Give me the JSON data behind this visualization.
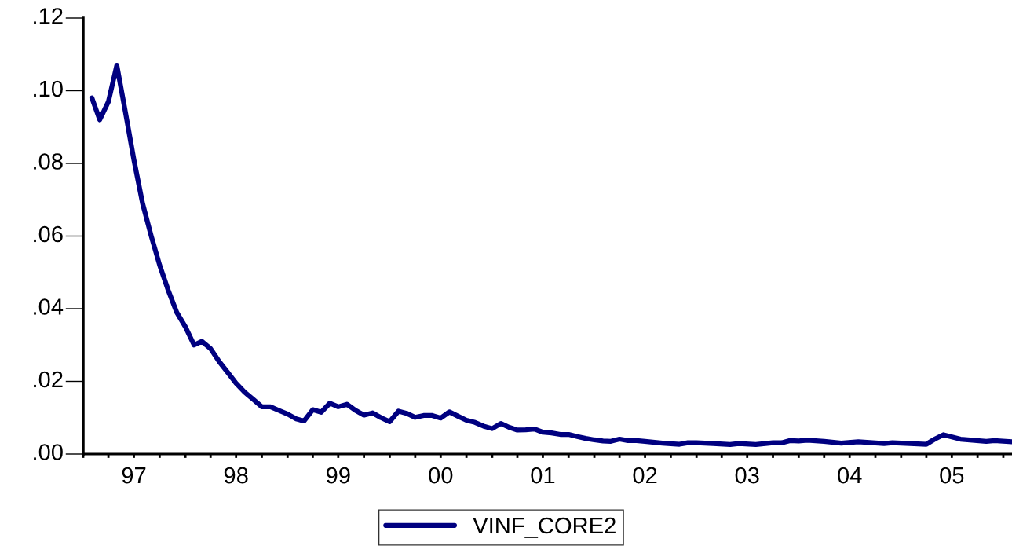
{
  "chart_data": {
    "type": "line",
    "x": [
      "1997-02",
      "1997-03",
      "1997-04",
      "1997-05",
      "1997-06",
      "1997-07",
      "1997-08",
      "1997-09",
      "1997-10",
      "1997-11",
      "1997-12",
      "1998-01",
      "1998-02",
      "1998-03",
      "1998-04",
      "1998-05",
      "1998-06",
      "1998-07",
      "1998-08",
      "1998-09",
      "1998-10",
      "1998-11",
      "1998-12",
      "1999-01",
      "1999-02",
      "1999-03",
      "1999-04",
      "1999-05",
      "1999-06",
      "1999-07",
      "1999-08",
      "1999-09",
      "1999-10",
      "1999-11",
      "1999-12",
      "2000-01",
      "2000-02",
      "2000-03",
      "2000-04",
      "2000-05",
      "2000-06",
      "2000-07",
      "2000-08",
      "2000-09",
      "2000-10",
      "2000-11",
      "2000-12",
      "2001-01",
      "2001-02",
      "2001-03",
      "2001-04",
      "2001-05",
      "2001-06",
      "2001-07",
      "2001-08",
      "2001-09",
      "2001-10",
      "2001-11",
      "2001-12",
      "2002-01",
      "2002-02",
      "2002-03",
      "2002-04",
      "2002-05",
      "2002-06",
      "2002-07",
      "2002-09",
      "2002-11",
      "2002-12",
      "2003-01",
      "2003-03",
      "2003-05",
      "2003-06",
      "2003-08",
      "2003-10",
      "2003-11",
      "2003-12",
      "2004-01",
      "2004-02",
      "2004-04",
      "2004-06",
      "2004-08",
      "2004-11",
      "2004-12",
      "2005-02",
      "2005-04",
      "2005-05",
      "2005-06",
      "2005-08",
      "2005-11",
      "2005-12",
      "2006-02"
    ],
    "series": [
      {
        "name": "VINF_CORE2",
        "color": "#000080",
        "values": [
          0.098,
          0.092,
          0.097,
          0.107,
          0.094,
          0.081,
          0.069,
          0.06,
          0.052,
          0.045,
          0.039,
          0.035,
          0.03,
          0.031,
          0.029,
          0.0255,
          0.0225,
          0.0195,
          0.017,
          0.015,
          0.013,
          0.013,
          0.012,
          0.011,
          0.0097,
          0.0091,
          0.0122,
          0.0115,
          0.014,
          0.013,
          0.0137,
          0.012,
          0.0107,
          0.0113,
          0.01,
          0.0089,
          0.0118,
          0.0112,
          0.0101,
          0.0106,
          0.0106,
          0.0099,
          0.0116,
          0.0104,
          0.0093,
          0.0087,
          0.0077,
          0.007,
          0.0084,
          0.0074,
          0.0066,
          0.0067,
          0.0069,
          0.006,
          0.0058,
          0.0054,
          0.0054,
          0.0048,
          0.0043,
          0.0039,
          0.0036,
          0.0035,
          0.0041,
          0.0037,
          0.0037,
          0.0035,
          0.003,
          0.0027,
          0.0031,
          0.0031,
          0.0029,
          0.0026,
          0.0029,
          0.0026,
          0.0031,
          0.0031,
          0.0037,
          0.0036,
          0.0038,
          0.0035,
          0.003,
          0.0034,
          0.0029,
          0.0031,
          0.0029,
          0.0027,
          0.0041,
          0.0053,
          0.0041,
          0.0035,
          0.0037,
          0.0034
        ]
      }
    ],
    "xlim": [
      "1997-01",
      "2006-02"
    ],
    "xticks": [
      {
        "value": "1997-01",
        "label": null
      },
      {
        "value": "1997-04",
        "label": null
      },
      {
        "value": "1997-07",
        "label": "97"
      },
      {
        "value": "1997-10",
        "label": null
      },
      {
        "value": "1998-01",
        "label": null
      },
      {
        "value": "1998-04",
        "label": null
      },
      {
        "value": "1998-07",
        "label": "98"
      },
      {
        "value": "1998-10",
        "label": null
      },
      {
        "value": "1999-01",
        "label": null
      },
      {
        "value": "1999-04",
        "label": null
      },
      {
        "value": "1999-07",
        "label": "99"
      },
      {
        "value": "1999-10",
        "label": null
      },
      {
        "value": "2000-01",
        "label": null
      },
      {
        "value": "2000-04",
        "label": null
      },
      {
        "value": "2000-07",
        "label": "00"
      },
      {
        "value": "2000-10",
        "label": null
      },
      {
        "value": "2001-01",
        "label": null
      },
      {
        "value": "2001-04",
        "label": null
      },
      {
        "value": "2001-07",
        "label": "01"
      },
      {
        "value": "2001-10",
        "label": null
      },
      {
        "value": "2002-01",
        "label": null
      },
      {
        "value": "2002-04",
        "label": null
      },
      {
        "value": "2002-07",
        "label": "02"
      },
      {
        "value": "2002-10",
        "label": null
      },
      {
        "value": "2003-01",
        "label": null
      },
      {
        "value": "2003-04",
        "label": null
      },
      {
        "value": "2003-07",
        "label": "03"
      },
      {
        "value": "2003-10",
        "label": null
      },
      {
        "value": "2004-01",
        "label": null
      },
      {
        "value": "2004-04",
        "label": null
      },
      {
        "value": "2004-07",
        "label": "04"
      },
      {
        "value": "2004-10",
        "label": null
      },
      {
        "value": "2005-01",
        "label": null
      },
      {
        "value": "2005-04",
        "label": null
      },
      {
        "value": "2005-07",
        "label": "05"
      },
      {
        "value": "2005-10",
        "label": null
      },
      {
        "value": "2006-01",
        "label": null
      }
    ],
    "ylim": [
      0,
      0.12
    ],
    "yticks": [
      {
        "value": 0,
        "label": ".00"
      },
      {
        "value": 0.02,
        "label": ".02"
      },
      {
        "value": 0.04,
        "label": ".04"
      },
      {
        "value": 0.06,
        "label": ".06"
      },
      {
        "value": 0.08,
        "label": ".08"
      },
      {
        "value": 0.1,
        "label": ".10"
      },
      {
        "value": 0.12,
        "label": ".12"
      }
    ],
    "legend": "bottom",
    "line_style": "solid",
    "marker": "none"
  }
}
